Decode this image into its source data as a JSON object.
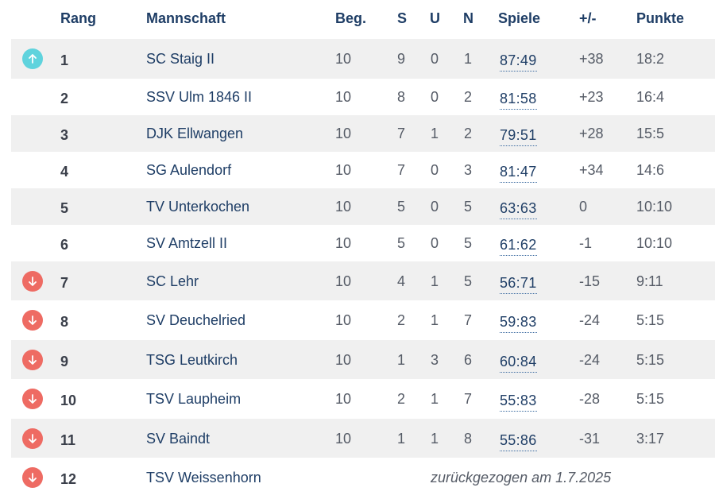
{
  "header": {
    "rang": "Rang",
    "mannschaft": "Mannschaft",
    "beg": "Beg.",
    "s": "S",
    "u": "U",
    "n": "N",
    "spiele": "Spiele",
    "diff": "+/-",
    "punkte": "Punkte"
  },
  "colors": {
    "up_badge": "#5fd3dd",
    "down_badge": "#ee6b63",
    "team_text": "#1f3e66",
    "stripe": "#f0f0f0"
  },
  "rows": [
    {
      "rank": "1",
      "team": "SC Staig II",
      "beg": "10",
      "s": "9",
      "u": "0",
      "n": "1",
      "spiele": "87:49",
      "diff": "+38",
      "pts": "18:2",
      "indicator": "arrow-up-icon"
    },
    {
      "rank": "2",
      "team": "SSV Ulm 1846 II",
      "beg": "10",
      "s": "8",
      "u": "0",
      "n": "2",
      "spiele": "81:58",
      "diff": "+23",
      "pts": "16:4",
      "indicator": ""
    },
    {
      "rank": "3",
      "team": "DJK Ellwangen",
      "beg": "10",
      "s": "7",
      "u": "1",
      "n": "2",
      "spiele": "79:51",
      "diff": "+28",
      "pts": "15:5",
      "indicator": ""
    },
    {
      "rank": "4",
      "team": "SG Aulendorf",
      "beg": "10",
      "s": "7",
      "u": "0",
      "n": "3",
      "spiele": "81:47",
      "diff": "+34",
      "pts": "14:6",
      "indicator": ""
    },
    {
      "rank": "5",
      "team": "TV Unterkochen",
      "beg": "10",
      "s": "5",
      "u": "0",
      "n": "5",
      "spiele": "63:63",
      "diff": "0",
      "pts": "10:10",
      "indicator": ""
    },
    {
      "rank": "6",
      "team": "SV Amtzell II",
      "beg": "10",
      "s": "5",
      "u": "0",
      "n": "5",
      "spiele": "61:62",
      "diff": "-1",
      "pts": "10:10",
      "indicator": ""
    },
    {
      "rank": "7",
      "team": "SC Lehr",
      "beg": "10",
      "s": "4",
      "u": "1",
      "n": "5",
      "spiele": "56:71",
      "diff": "-15",
      "pts": "9:11",
      "indicator": "arrow-down-icon"
    },
    {
      "rank": "8",
      "team": "SV Deuchelried",
      "beg": "10",
      "s": "2",
      "u": "1",
      "n": "7",
      "spiele": "59:83",
      "diff": "-24",
      "pts": "5:15",
      "indicator": "arrow-down-icon"
    },
    {
      "rank": "9",
      "team": "TSG Leutkirch",
      "beg": "10",
      "s": "1",
      "u": "3",
      "n": "6",
      "spiele": "60:84",
      "diff": "-24",
      "pts": "5:15",
      "indicator": "arrow-down-icon"
    },
    {
      "rank": "10",
      "team": "TSV Laupheim",
      "beg": "10",
      "s": "2",
      "u": "1",
      "n": "7",
      "spiele": "55:83",
      "diff": "-28",
      "pts": "5:15",
      "indicator": "arrow-down-icon"
    },
    {
      "rank": "11",
      "team": "SV Baindt",
      "beg": "10",
      "s": "1",
      "u": "1",
      "n": "8",
      "spiele": "55:86",
      "diff": "-31",
      "pts": "3:17",
      "indicator": "arrow-down-icon"
    },
    {
      "rank": "12",
      "team": "TSV Weissenhorn",
      "withdrawn": "zurückgezogen am 1.7.2025",
      "indicator": "arrow-down-icon"
    }
  ]
}
